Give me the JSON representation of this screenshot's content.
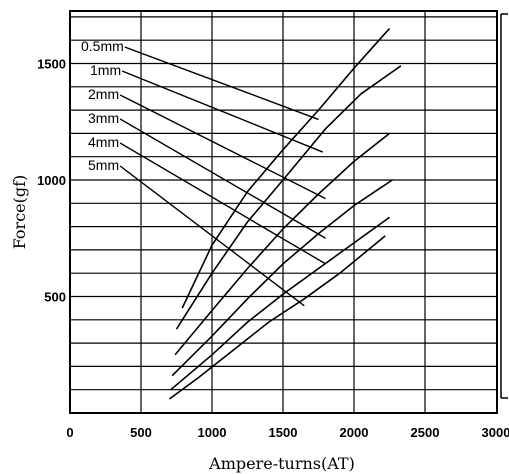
{
  "chart_data": {
    "type": "line",
    "xlabel": "Ampere-turns(AT)",
    "ylabel": "Force(gf)",
    "xlim": [
      0,
      3000
    ],
    "ylim": [
      0,
      1700
    ],
    "x_ticks": [
      0,
      500,
      1000,
      1500,
      2000,
      2500,
      3000
    ],
    "y_ticks": [
      500,
      1000,
      1500
    ],
    "grid": true,
    "series": [
      {
        "name": "0.5mm",
        "x": [
          790,
          1000,
          1250,
          1500,
          1750,
          2000,
          2250
        ],
        "y": [
          450,
          720,
          950,
          1130,
          1300,
          1480,
          1650
        ]
      },
      {
        "name": "1mm",
        "x": [
          750,
          1000,
          1250,
          1500,
          1800,
          2050,
          2330
        ],
        "y": [
          360,
          600,
          820,
          1000,
          1220,
          1370,
          1490
        ]
      },
      {
        "name": "2mm",
        "x": [
          740,
          1000,
          1250,
          1500,
          1750,
          2000,
          2250
        ],
        "y": [
          250,
          440,
          620,
          790,
          940,
          1080,
          1200
        ]
      },
      {
        "name": "3mm",
        "x": [
          720,
          1000,
          1250,
          1500,
          1750,
          2000,
          2270
        ],
        "y": [
          160,
          330,
          490,
          640,
          770,
          890,
          1000
        ]
      },
      {
        "name": "4mm",
        "x": [
          710,
          1000,
          1250,
          1500,
          1750,
          2000,
          2250
        ],
        "y": [
          100,
          250,
          390,
          510,
          620,
          730,
          840
        ]
      },
      {
        "name": "5mm",
        "x": [
          700,
          900,
          1150,
          1400,
          1650,
          1900,
          2220
        ],
        "y": [
          60,
          150,
          270,
          390,
          490,
          600,
          760
        ]
      }
    ]
  }
}
